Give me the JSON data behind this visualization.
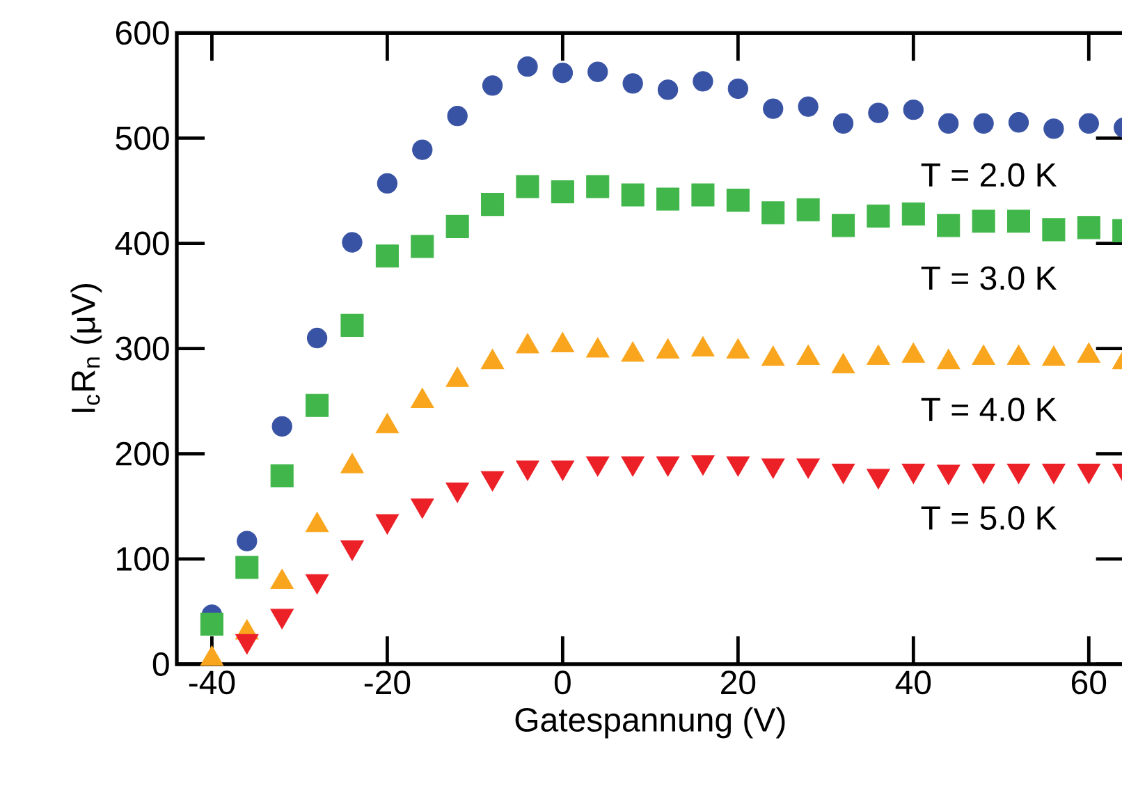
{
  "chart_data": {
    "type": "scatter",
    "xlabel": "Gatespannung (V)",
    "ylabel": "I$_{c}$R$_{n}$ (μV)",
    "x": [
      -40,
      -36,
      -32,
      -28,
      -24,
      -20,
      -16,
      -12,
      -8,
      -4,
      0,
      4,
      8,
      12,
      16,
      20,
      24,
      28,
      32,
      36,
      40,
      44,
      48,
      52,
      56,
      60,
      64
    ],
    "series": [
      {
        "name": "T = 2.0 K",
        "color": "#3953a4",
        "marker": "circle",
        "values": [
          47,
          117,
          226,
          310,
          401,
          457,
          489,
          521,
          550,
          568,
          562,
          563,
          552,
          546,
          554,
          547,
          528,
          530,
          514,
          524,
          527,
          514,
          514,
          515,
          509,
          514,
          510
        ]
      },
      {
        "name": "T = 3.0 K",
        "color": "#41b64a",
        "marker": "square",
        "values": [
          38,
          92,
          179,
          246,
          322,
          388,
          397,
          416,
          437,
          454,
          449,
          454,
          446,
          442,
          446,
          441,
          429,
          432,
          417,
          426,
          428,
          417,
          421,
          421,
          413,
          415,
          412
        ]
      },
      {
        "name": "T = 4.0 K",
        "color": "#f9a61e",
        "marker": "triangle",
        "values": [
          5,
          30,
          78,
          132,
          188,
          226,
          250,
          270,
          287,
          302,
          303,
          298,
          294,
          297,
          299,
          297,
          290,
          291,
          283,
          291,
          293,
          287,
          291,
          291,
          290,
          293,
          287
        ]
      },
      {
        "name": "T = 5.0 K",
        "color": "#ec2027",
        "marker": "triangle-down",
        "values": [
          null,
          22,
          46,
          79,
          111,
          136,
          151,
          166,
          177,
          187,
          187,
          191,
          191,
          191,
          192,
          191,
          189,
          189,
          184,
          179,
          184,
          183,
          184,
          184,
          184,
          184,
          184
        ]
      }
    ],
    "xlim": [
      -44,
      64
    ],
    "ylim": [
      0,
      600
    ],
    "xticks": [
      -40,
      -20,
      0,
      20,
      40,
      60
    ],
    "yticks": [
      0,
      100,
      200,
      300,
      400,
      500,
      600
    ],
    "grid": false,
    "legend": false
  }
}
